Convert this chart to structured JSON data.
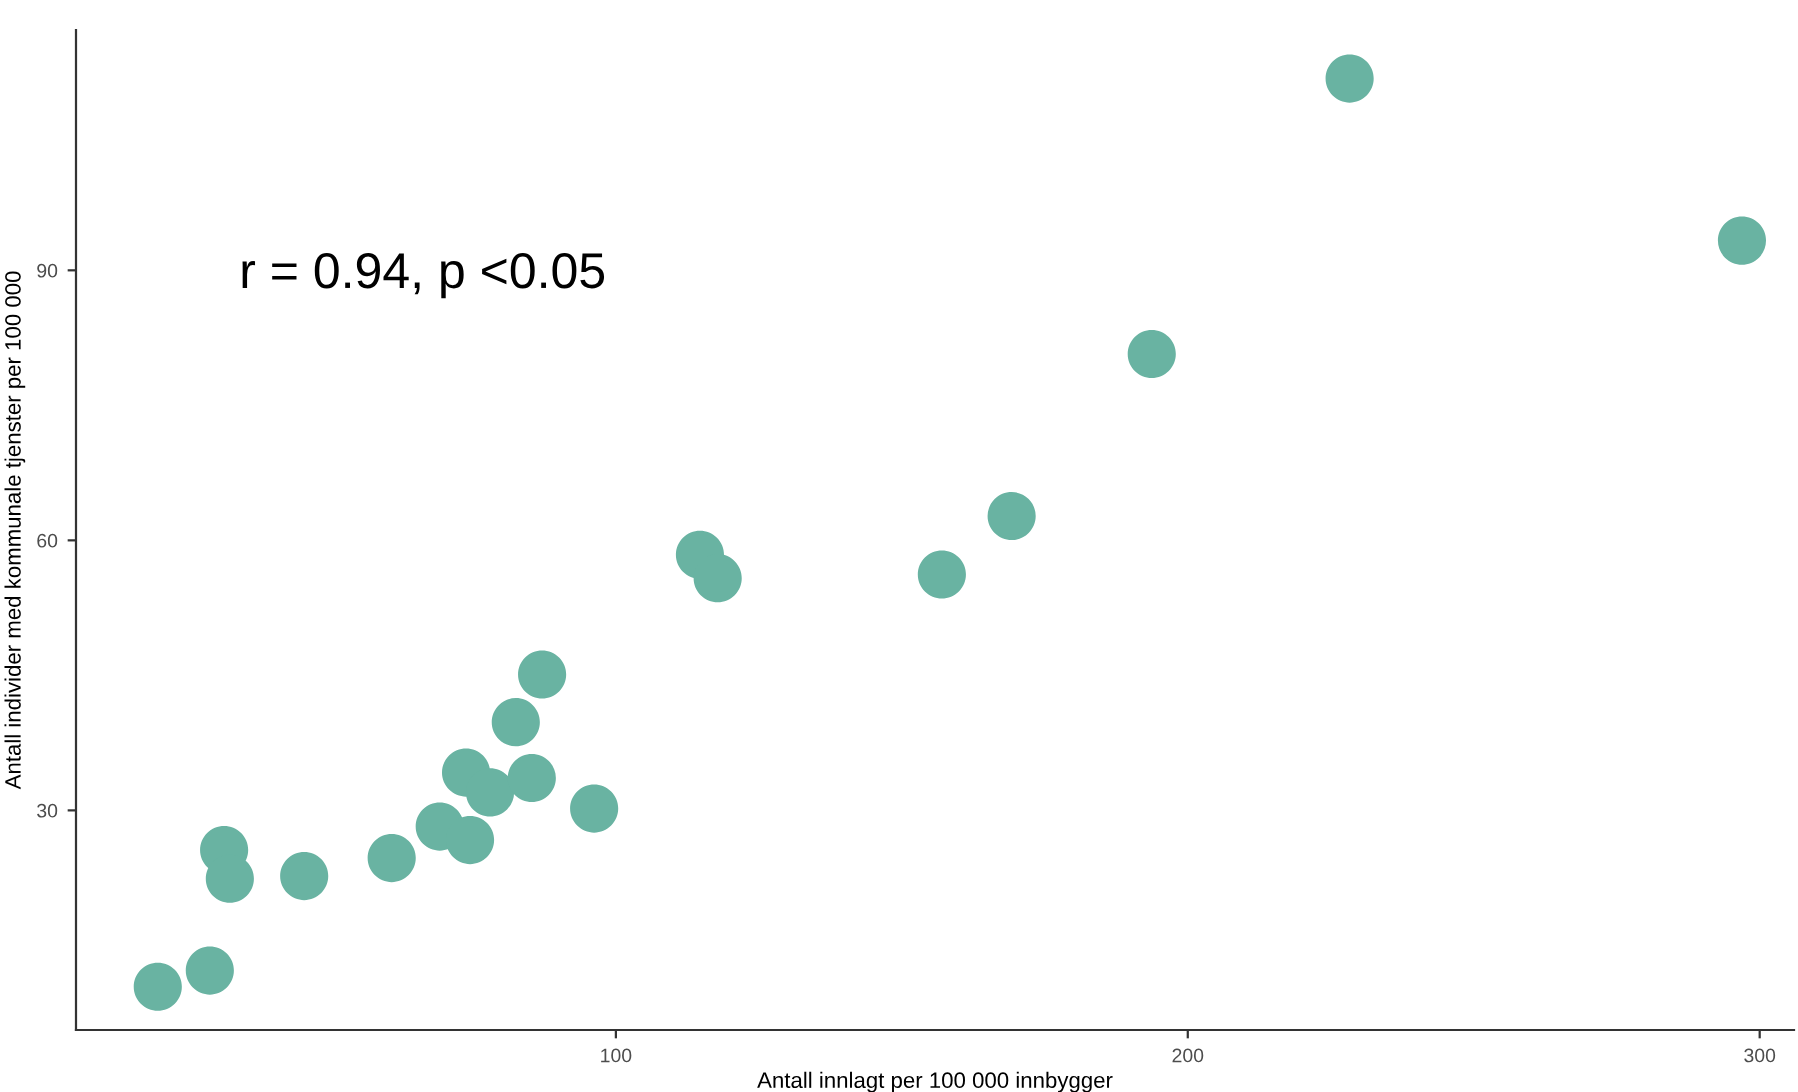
{
  "chart_data": {
    "type": "scatter",
    "xlabel": "Antall innlagt per 100 000 innbygger",
    "ylabel": "Antall individer med kommunale tjenster per 100 000",
    "annotations": [
      "r = 0.94, p <0.05"
    ],
    "x": [
      19.9,
      29.0,
      31.5,
      32.5,
      45.5,
      60.8,
      69.2,
      74.5,
      73.8,
      78.0,
      82.5,
      85.3,
      87.1,
      96.2,
      114.7,
      117.8,
      157.0,
      169.2,
      193.7,
      228.3,
      296.9
    ],
    "series": [
      {
        "color": "#69b3a2",
        "values": [
          10.4,
          12.2,
          25.6,
          22.4,
          22.7,
          24.7,
          28.2,
          26.7,
          34.2,
          32.0,
          39.8,
          33.6,
          45.1,
          30.2,
          58.4,
          55.8,
          56.2,
          62.7,
          80.7,
          111.3,
          93.3
        ]
      }
    ],
    "xlim": [
      5.6,
      306
    ],
    "ylim": [
      5.6,
      116.7
    ],
    "xticks": [
      100,
      200,
      300
    ],
    "yticks": [
      30,
      60,
      90
    ],
    "grid": false,
    "legend": false,
    "marker": "circle"
  }
}
